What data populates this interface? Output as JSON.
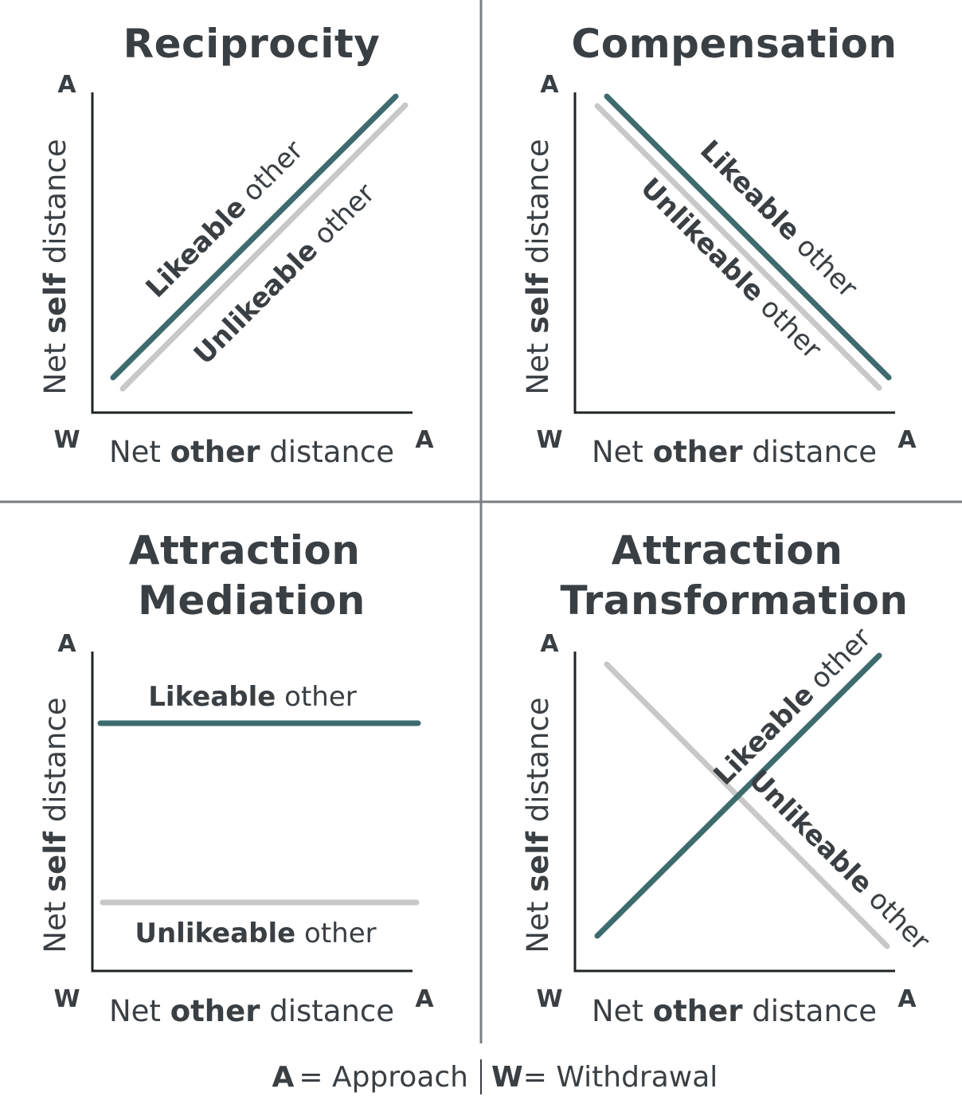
{
  "colors": {
    "likeable": "#3d6b6e",
    "unlikeable": "#c8c8c8",
    "text": "#3a3f44",
    "divider": "#7a7e82",
    "axis": "#1f2326"
  },
  "axis_text": {
    "y_pre": "Net ",
    "y_bold": "self",
    "y_post": " distance",
    "x_pre": "Net ",
    "x_bold": "other",
    "x_post": " distance",
    "tick_approach": "A",
    "tick_withdrawal": "W"
  },
  "series_text": {
    "likeable_bold": "Likeable",
    "unlikeable_bold": "Unlikeable",
    "suffix": " other"
  },
  "panels": [
    {
      "title_lines": [
        "Reciprocity"
      ],
      "pattern": "reciprocity"
    },
    {
      "title_lines": [
        "Compensation"
      ],
      "pattern": "compensation"
    },
    {
      "title_lines": [
        "Attraction",
        "Mediation"
      ],
      "pattern": "mediation"
    },
    {
      "title_lines": [
        "Attraction",
        "Transformation"
      ],
      "pattern": "transformation"
    }
  ],
  "legend": {
    "a_key": "A",
    "a_text": "= Approach",
    "w_key": "W",
    "w_text": "= Withdrawal"
  }
}
